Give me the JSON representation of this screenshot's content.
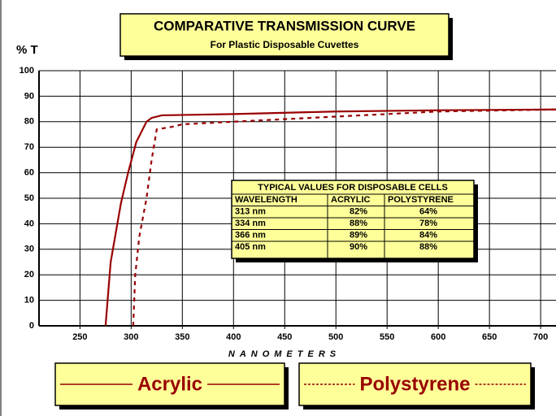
{
  "chart_data": {
    "type": "line",
    "title": "COMPARATIVE TRANSMISSION CURVE",
    "subtitle": "For Plastic Disposable Cuvettes",
    "ylabel": "% T",
    "xlabel": "NANOMETERS",
    "xlim": [
      210,
      715
    ],
    "ylim": [
      0,
      100
    ],
    "xticks": [
      250,
      300,
      350,
      400,
      450,
      500,
      550,
      600,
      650,
      700
    ],
    "yticks": [
      0,
      10,
      20,
      30,
      40,
      50,
      60,
      70,
      80,
      90,
      100
    ],
    "grid": true,
    "series": [
      {
        "name": "Acrylic",
        "color": "#990000",
        "style": "solid",
        "x": [
          275,
          280,
          290,
          297,
          305,
          315,
          320,
          330,
          400,
          500,
          600,
          715
        ],
        "values": [
          0,
          25,
          48,
          60,
          72,
          80,
          81.5,
          82.5,
          83,
          84,
          84.5,
          84.8
        ]
      },
      {
        "name": "Polystyrene",
        "color": "#990000",
        "style": "dashed",
        "x": [
          302,
          304,
          308,
          315,
          320,
          325,
          340,
          350,
          400,
          500,
          600,
          715
        ],
        "values": [
          0,
          20,
          35,
          50,
          65,
          77,
          78,
          79,
          80,
          82,
          84,
          84.8
        ]
      }
    ],
    "table": {
      "title": "TYPICAL VALUES FOR DISPOSABLE CELLS",
      "header": [
        "WAVELENGTH",
        "ACRYLIC",
        "POLYSTYRENE"
      ],
      "rows": [
        [
          "313 nm",
          "82%",
          "64%"
        ],
        [
          "334 nm",
          "88%",
          "78%"
        ],
        [
          "366 nm",
          "89%",
          "84%"
        ],
        [
          "405 nm",
          "90%",
          "88%"
        ]
      ]
    }
  }
}
